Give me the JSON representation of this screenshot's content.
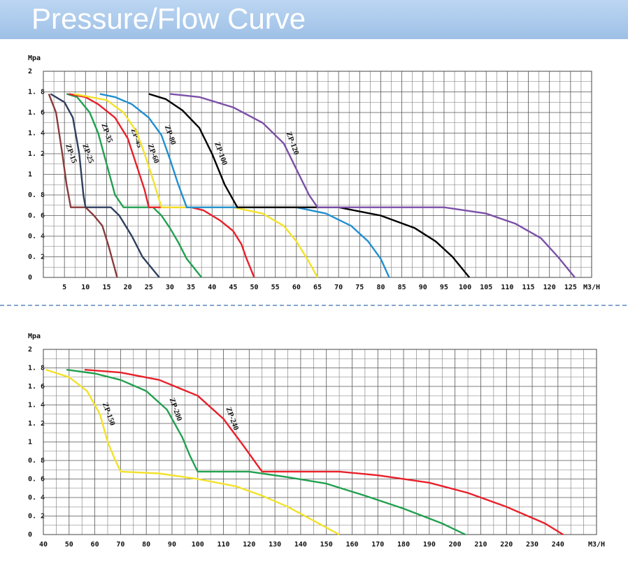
{
  "title": "Pressure/Flow Curve",
  "chart_data": [
    {
      "type": "line",
      "y_label": "Mpa",
      "x_label": "M3/H",
      "xlim": [
        0,
        130
      ],
      "ylim": [
        0,
        2
      ],
      "xticks": [
        5,
        10,
        15,
        20,
        25,
        30,
        35,
        40,
        45,
        50,
        55,
        60,
        65,
        70,
        75,
        80,
        85,
        90,
        95,
        100,
        105,
        110,
        115,
        120,
        125
      ],
      "yticks": [
        0,
        {
          "value": 0.2,
          "label": "0. 2"
        },
        {
          "value": 0.4,
          "label": "0. 4"
        },
        {
          "value": 0.6,
          "label": "0. 6"
        },
        {
          "value": 0.8,
          "label": "0. 8"
        },
        1,
        {
          "value": 1.2,
          "label": "1. 2"
        },
        {
          "value": 1.4,
          "label": "1. 4"
        },
        {
          "value": 1.6,
          "label": "1. 6"
        },
        {
          "value": 1.8,
          "label": "1. 8"
        },
        2
      ],
      "grid": true,
      "series": [
        {
          "name": "ZP-15",
          "color": "#8b3a3a",
          "x": [
            1.3,
            3,
            4.5,
            5.5,
            6.5,
            10,
            12,
            14,
            15.5,
            17.5
          ],
          "values": [
            1.78,
            1.6,
            1.2,
            0.9,
            0.68,
            0.68,
            0.6,
            0.5,
            0.3,
            0
          ]
        },
        {
          "name": "ZP-25",
          "color": "#2f3f5f",
          "x": [
            1.7,
            5,
            7,
            8.5,
            9.5,
            10,
            16,
            18,
            21,
            23.5,
            27.5
          ],
          "values": [
            1.78,
            1.7,
            1.55,
            1.2,
            0.8,
            0.68,
            0.68,
            0.6,
            0.4,
            0.2,
            0
          ]
        },
        {
          "name": "ZP-35",
          "color": "#22a050",
          "x": [
            5.5,
            8,
            11,
            13,
            15,
            17,
            19,
            26,
            28,
            30,
            32,
            34,
            37.5
          ],
          "values": [
            1.78,
            1.75,
            1.6,
            1.4,
            1.1,
            0.8,
            0.68,
            0.68,
            0.6,
            0.48,
            0.34,
            0.18,
            0
          ]
        },
        {
          "name": "ZP-45",
          "color": "#e8202a",
          "x": [
            6,
            10,
            13,
            17,
            20,
            22,
            24,
            25,
            35,
            38,
            42,
            45,
            47,
            48,
            50
          ],
          "values": [
            1.78,
            1.75,
            1.68,
            1.55,
            1.35,
            1.1,
            0.85,
            0.68,
            0.68,
            0.65,
            0.55,
            0.45,
            0.32,
            0.2,
            0
          ]
        },
        {
          "name": "ZP-60",
          "color": "#f2e22a",
          "x": [
            7.3,
            15,
            19,
            22,
            24,
            26,
            28,
            45,
            52,
            57,
            60,
            63,
            65
          ],
          "values": [
            1.78,
            1.72,
            1.6,
            1.42,
            1.2,
            0.95,
            0.68,
            0.68,
            0.62,
            0.5,
            0.35,
            0.15,
            0
          ]
        },
        {
          "name": "ZP-80",
          "color": "#1f8fd0",
          "x": [
            13.4,
            17,
            21,
            25,
            28,
            30,
            32,
            34,
            60,
            67,
            73,
            77,
            80,
            82
          ],
          "values": [
            1.78,
            1.75,
            1.68,
            1.55,
            1.38,
            1.15,
            0.9,
            0.68,
            0.68,
            0.62,
            0.5,
            0.35,
            0.18,
            0
          ]
        },
        {
          "name": "ZP-100",
          "color": "#000000",
          "x": [
            25,
            29,
            33,
            37,
            40,
            43,
            46,
            70,
            80,
            88,
            93,
            97,
            101
          ],
          "values": [
            1.78,
            1.73,
            1.62,
            1.45,
            1.2,
            0.9,
            0.68,
            0.68,
            0.6,
            0.48,
            0.35,
            0.2,
            0
          ]
        },
        {
          "name": "ZP-120",
          "color": "#7b4fa8",
          "x": [
            30,
            37,
            45,
            52,
            57,
            60,
            63,
            65,
            95,
            105,
            112,
            118,
            122,
            126
          ],
          "values": [
            1.78,
            1.75,
            1.65,
            1.5,
            1.3,
            1.05,
            0.8,
            0.68,
            0.68,
            0.62,
            0.52,
            0.38,
            0.2,
            0
          ]
        }
      ]
    },
    {
      "type": "line",
      "y_label": "Mpa",
      "x_label": "M3/H",
      "xlim": [
        40,
        255
      ],
      "ylim": [
        0,
        2
      ],
      "xticks": [
        40,
        50,
        60,
        70,
        80,
        90,
        100,
        110,
        120,
        130,
        140,
        150,
        160,
        170,
        180,
        190,
        200,
        210,
        220,
        230,
        240
      ],
      "yticks": [
        0,
        {
          "value": 0.2,
          "label": "0. 2"
        },
        {
          "value": 0.4,
          "label": "0. 4"
        },
        {
          "value": 0.6,
          "label": "0. 6"
        },
        {
          "value": 0.8,
          "label": "0. 8"
        },
        1,
        {
          "value": 1.2,
          "label": "1. 2"
        },
        {
          "value": 1.4,
          "label": "1. 4"
        },
        {
          "value": 1.6,
          "label": "1. 6"
        },
        {
          "value": 1.8,
          "label": "1. 8"
        },
        2
      ],
      "grid": true,
      "series": [
        {
          "name": "ZP-150",
          "color": "#f2e22a",
          "x": [
            41,
            50,
            57,
            62,
            65,
            68,
            70,
            85,
            100,
            115,
            125,
            135,
            145,
            155
          ],
          "values": [
            1.78,
            1.7,
            1.55,
            1.3,
            1.0,
            0.8,
            0.68,
            0.66,
            0.6,
            0.52,
            0.42,
            0.3,
            0.15,
            0
          ]
        },
        {
          "name": "ZP-200",
          "color": "#22a050",
          "x": [
            49,
            60,
            70,
            80,
            88,
            94,
            97,
            100,
            120,
            135,
            150,
            165,
            180,
            195,
            204
          ],
          "values": [
            1.78,
            1.74,
            1.67,
            1.55,
            1.35,
            1.05,
            0.85,
            0.68,
            0.68,
            0.62,
            0.55,
            0.42,
            0.28,
            0.12,
            0
          ]
        },
        {
          "name": "ZP-240",
          "color": "#e8202a",
          "x": [
            56,
            70,
            85,
            100,
            110,
            118,
            125,
            155,
            170,
            190,
            205,
            220,
            235,
            242
          ],
          "values": [
            1.78,
            1.75,
            1.67,
            1.5,
            1.25,
            0.95,
            0.68,
            0.68,
            0.64,
            0.56,
            0.45,
            0.3,
            0.12,
            0
          ]
        }
      ]
    }
  ]
}
